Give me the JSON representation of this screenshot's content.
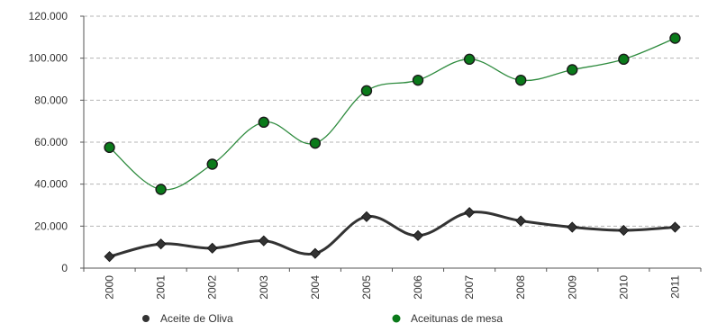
{
  "chart_data": {
    "type": "line",
    "categories": [
      "2000",
      "2001",
      "2002",
      "2003",
      "2004",
      "2005",
      "2006",
      "2007",
      "2008",
      "2009",
      "2010",
      "2011"
    ],
    "series": [
      {
        "name": "Aceite de Oliva",
        "color": "#333333",
        "marker": "diamond",
        "values": [
          5500,
          11500,
          9500,
          13000,
          7000,
          24500,
          15500,
          26500,
          22500,
          19500,
          18000,
          19500
        ]
      },
      {
        "name": "Aceitunas de mesa",
        "color": "#2e8b3e",
        "marker_color": "#0a7a1a",
        "marker": "circle",
        "values": [
          57500,
          37500,
          49500,
          69500,
          59500,
          84500,
          89500,
          99500,
          89500,
          94500,
          99500,
          109500
        ]
      }
    ],
    "y_ticks": [
      "0",
      "20.000",
      "40.000",
      "60.000",
      "80.000",
      "100.000",
      "120.000"
    ],
    "y_tick_values": [
      0,
      20000,
      40000,
      60000,
      80000,
      100000,
      120000
    ],
    "ylim": [
      0,
      120000
    ],
    "grid": "horizontal-dashed",
    "legend": "bottom",
    "x_tick_rotation": "vertical"
  }
}
